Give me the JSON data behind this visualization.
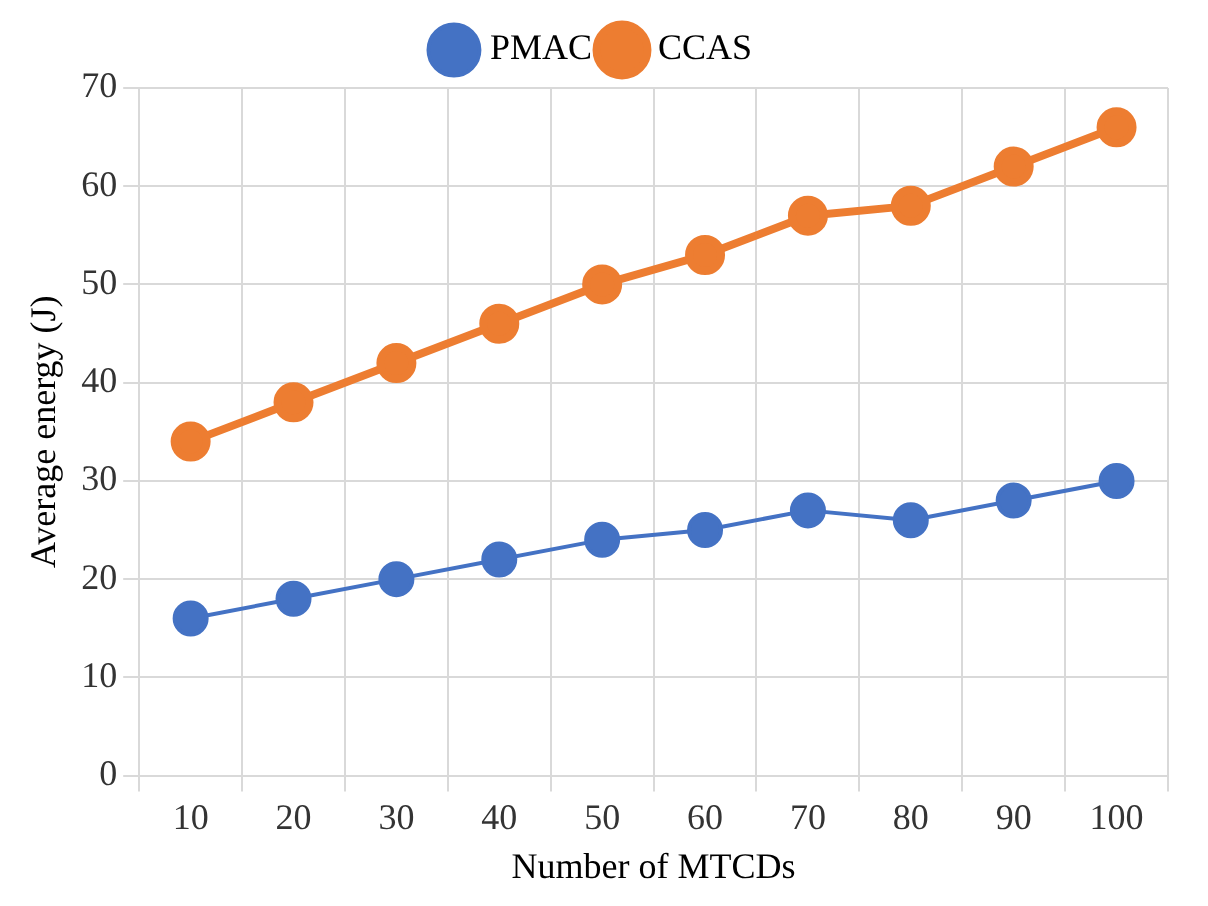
{
  "chart_data": {
    "type": "line",
    "xlabel": "Number of MTCDs",
    "ylabel": "Average energy (J)",
    "categories": [
      "10",
      "20",
      "30",
      "40",
      "50",
      "60",
      "70",
      "80",
      "90",
      "100"
    ],
    "series": [
      {
        "name": "PMAC",
        "color": "#4472c4",
        "values": [
          16,
          18,
          20,
          22,
          24,
          25,
          27,
          26,
          28,
          30
        ]
      },
      {
        "name": "CCAS",
        "color": "#ed7d31",
        "values": [
          34,
          38,
          42,
          46,
          50,
          53,
          57,
          58,
          62,
          66
        ]
      }
    ],
    "ylim": [
      0,
      70
    ],
    "yticks": [
      0,
      10,
      20,
      30,
      40,
      50,
      60,
      70
    ],
    "grid": true,
    "legend": "top",
    "marker": "circle",
    "line_style": "solid"
  }
}
